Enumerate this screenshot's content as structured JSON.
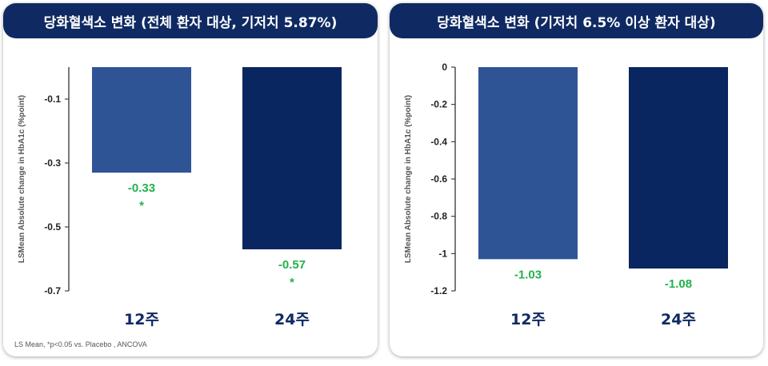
{
  "chart_data": [
    {
      "type": "bar",
      "title": "당화혈색소 변화 (전체 환자 대상, 기저치 5.87%)",
      "ylabel": "LSMean Absolute change  in HbA1c (%point)",
      "categories": [
        "12주",
        "24주"
      ],
      "values": [
        -0.33,
        -0.57
      ],
      "value_labels": [
        "-0.33",
        "-0.57"
      ],
      "significance": [
        "*",
        "*"
      ],
      "yticks": [
        "-0.1",
        "-0.3",
        "-0.5",
        "-0.7"
      ],
      "ylim": [
        -0.7,
        0
      ],
      "colors": [
        "#2f5496",
        "#0a2660"
      ],
      "label_color": "#22b24c",
      "footnote": "LS Mean, *p<0.05 vs. Placebo , ANCOVA"
    },
    {
      "type": "bar",
      "title": "당화혈색소 변화 (기저치 6.5% 이상 환자 대상)",
      "ylabel": "LSMean Absolute change  in HbA1c (%point)",
      "categories": [
        "12주",
        "24주"
      ],
      "values": [
        -1.03,
        -1.08
      ],
      "value_labels": [
        "-1.03",
        "-1.08"
      ],
      "significance": [
        "",
        ""
      ],
      "yticks": [
        "0",
        "-0.2",
        "-0.4",
        "-0.6",
        "-0.8",
        "-1",
        "-1.2"
      ],
      "ylim": [
        -1.2,
        0
      ],
      "colors": [
        "#2f5496",
        "#0a2660"
      ],
      "label_color": "#22b24c"
    }
  ]
}
